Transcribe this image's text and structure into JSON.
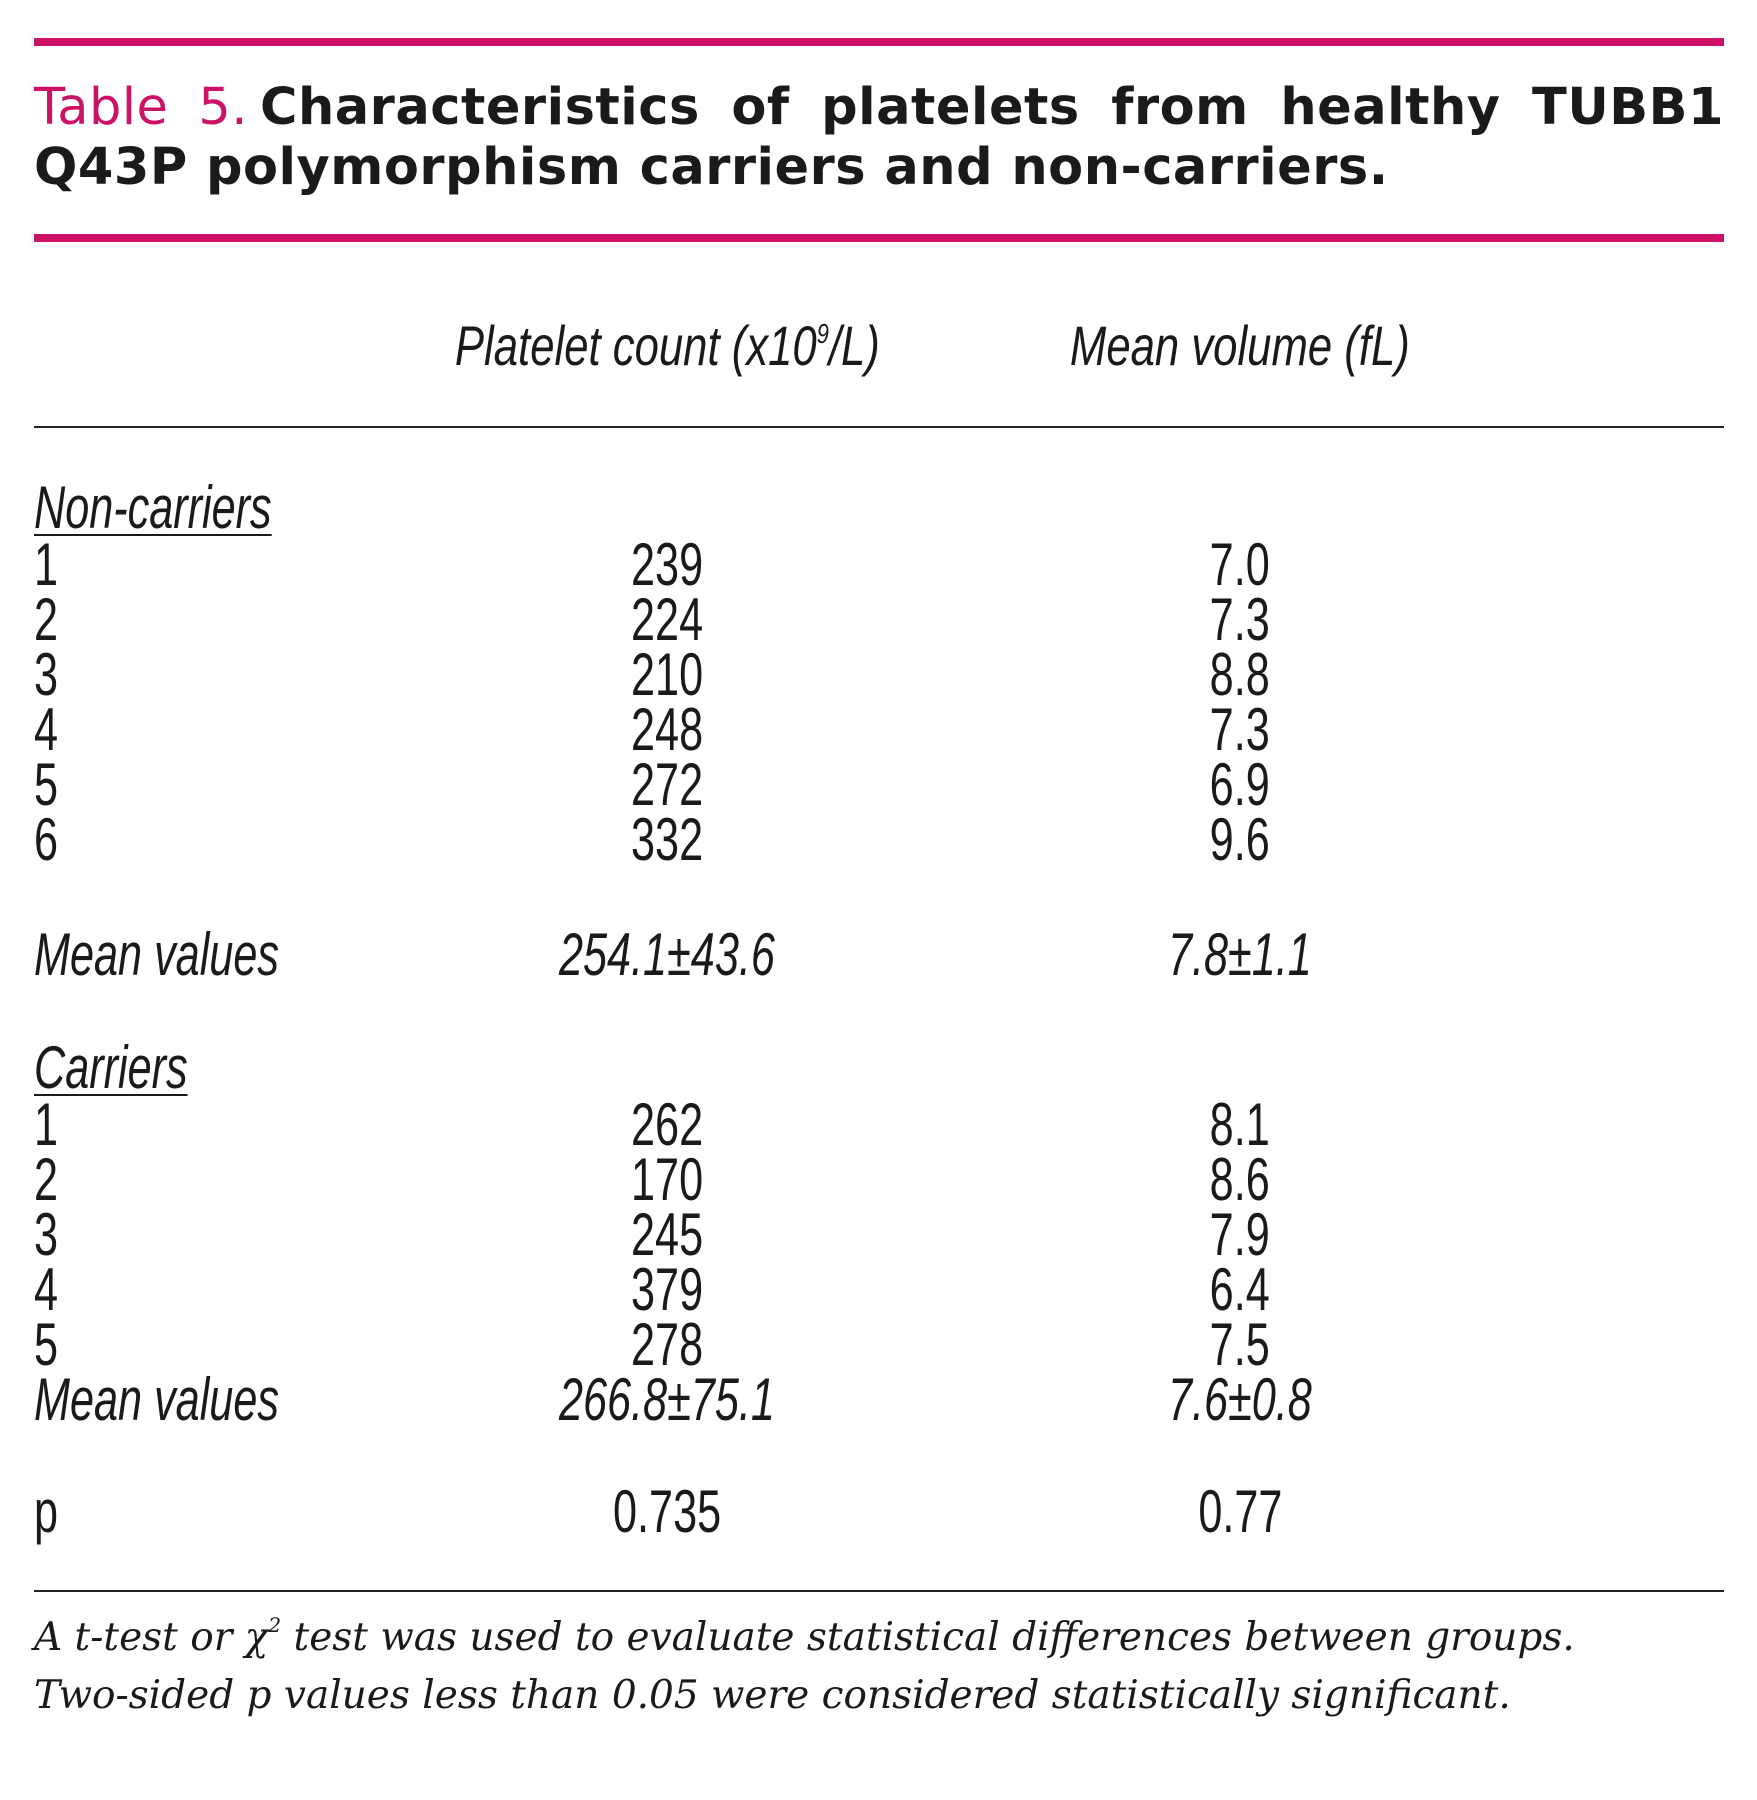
{
  "title": {
    "label": "Table 5.",
    "text": "Characteristics of platelets from healthy TUBB1 Q43P polymorphism carriers and non-carriers."
  },
  "header": {
    "col1_prefix": "Platelet count (x10",
    "col1_sup": "9",
    "col1_suffix": "/L)",
    "col2": "Mean volume (fL)"
  },
  "non_carriers": {
    "label": "Non-carriers",
    "rows": [
      {
        "id": "1",
        "platelet_count": "239",
        "mean_volume": "7.0"
      },
      {
        "id": "2",
        "platelet_count": "224",
        "mean_volume": "7.3"
      },
      {
        "id": "3",
        "platelet_count": "210",
        "mean_volume": "8.8"
      },
      {
        "id": "4",
        "platelet_count": "248",
        "mean_volume": "7.3"
      },
      {
        "id": "5",
        "platelet_count": "272",
        "mean_volume": "6.9"
      },
      {
        "id": "6",
        "platelet_count": "332",
        "mean_volume": "9.6"
      }
    ],
    "mean_label": "Mean values",
    "mean_platelet_count": "254.1±43.6",
    "mean_volume": "7.8±1.1"
  },
  "carriers": {
    "label": "Carriers",
    "rows": [
      {
        "id": "1",
        "platelet_count": "262",
        "mean_volume": "8.1"
      },
      {
        "id": "2",
        "platelet_count": "170",
        "mean_volume": "8.6"
      },
      {
        "id": "3",
        "platelet_count": "245",
        "mean_volume": "7.9"
      },
      {
        "id": "4",
        "platelet_count": "379",
        "mean_volume": "6.4"
      },
      {
        "id": "5",
        "platelet_count": "278",
        "mean_volume": "7.5"
      }
    ],
    "mean_label": "Mean values",
    "mean_platelet_count": "266.8±75.1",
    "mean_volume": "7.6±0.8"
  },
  "p_row": {
    "label": "p",
    "platelet_count": "0.735",
    "mean_volume": "0.77"
  },
  "footnote": {
    "line1_prefix": "A t-test or χ",
    "line1_sup": "2",
    "line1_suffix": " test was used to evaluate statistical differences between groups.",
    "line2": "Two-sided p values less than 0.05 were considered statistically significant."
  },
  "colors": {
    "accent": "#cc1266",
    "text": "#1a1a1a"
  }
}
